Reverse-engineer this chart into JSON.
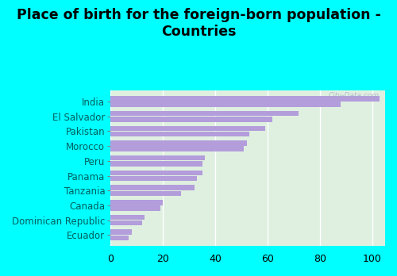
{
  "title": "Place of birth for the foreign-born population -\nCountries",
  "categories": [
    "India",
    "El Salvador",
    "Pakistan",
    "Morocco",
    "Peru",
    "Panama",
    "Tanzania",
    "Canada",
    "Dominican Republic",
    "Ecuador"
  ],
  "bar1_values": [
    103,
    72,
    59,
    52,
    36,
    35,
    32,
    20,
    13,
    8
  ],
  "bar2_values": [
    88,
    62,
    53,
    51,
    35,
    33,
    27,
    19,
    12,
    7
  ],
  "bar_color": "#b39ddb",
  "background_outer": "#00ffff",
  "background_inner": "#dff0e0",
  "xlim": [
    0,
    105
  ],
  "xticks": [
    0,
    20,
    40,
    60,
    80,
    100
  ],
  "title_fontsize": 12.5,
  "label_fontsize": 8.5,
  "tick_fontsize": 9,
  "label_color": "#005f5f",
  "watermark": "City-Data.com"
}
